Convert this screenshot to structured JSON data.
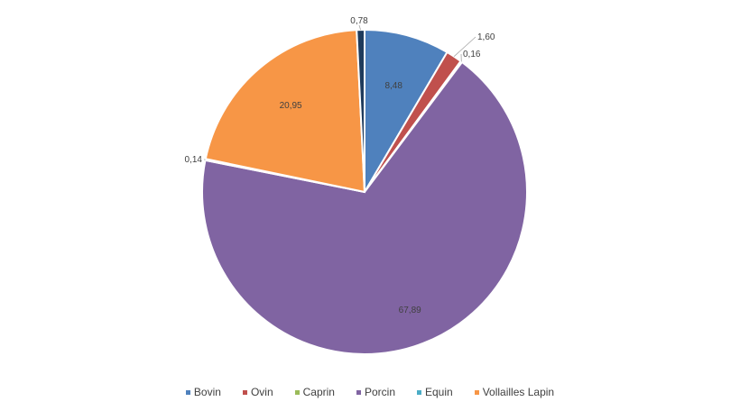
{
  "chart_data": {
    "type": "pie",
    "slices": [
      {
        "label": "Bovin",
        "value": 8.48,
        "display": "8,48",
        "color": "#4F81BD"
      },
      {
        "label": "Ovin",
        "value": 1.6,
        "display": "1,60",
        "color": "#C0504D"
      },
      {
        "label": "Caprin",
        "value": 0.16,
        "display": "0,16",
        "color": "#9BBB59"
      },
      {
        "label": "Porcin",
        "value": 67.89,
        "display": "67,89",
        "color": "#8064A2"
      },
      {
        "label": "Equin",
        "value": 0.14,
        "display": "0,14",
        "color": "#4BACC6"
      },
      {
        "label": "Vollailles Lapin",
        "value": 20.95,
        "display": "20,95",
        "color": "#F79646"
      },
      {
        "label": "",
        "value": 0.78,
        "display": "0,78",
        "color": "#1F3B5C"
      }
    ],
    "legend": {
      "placement": "bottom",
      "items": [
        "Bovin",
        "Ovin",
        "Caprin",
        "Porcin",
        "Equin",
        "Vollailles Lapin"
      ]
    }
  }
}
